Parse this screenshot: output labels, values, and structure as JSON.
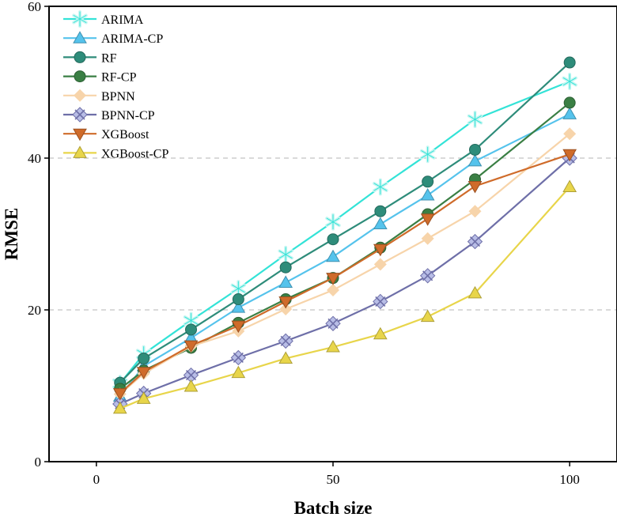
{
  "chart_data": {
    "type": "line",
    "title": "",
    "xlabel": "Batch size",
    "ylabel": "RMSE",
    "xlim": [
      -10,
      110
    ],
    "ylim": [
      0,
      60
    ],
    "xticks": [
      0,
      50,
      100
    ],
    "yticks": [
      0,
      20,
      40,
      60
    ],
    "grid": "horizontal dashed at 20 and 40",
    "legend_position": "top-left",
    "x": [
      5,
      10,
      20,
      30,
      40,
      50,
      60,
      70,
      80,
      100
    ],
    "series": [
      {
        "name": "ARIMA",
        "color": "#33e3d7",
        "marker": "asterisk",
        "values": [
          10.3,
          14.2,
          18.6,
          22.8,
          27.3,
          31.6,
          36.2,
          40.5,
          45.1,
          50.1
        ]
      },
      {
        "name": "ARIMA-CP",
        "color": "#55c3ec",
        "marker": "triangle",
        "values": [
          8.6,
          12.6,
          16.3,
          20.3,
          23.6,
          27.0,
          31.3,
          35.1,
          39.6,
          45.8
        ]
      },
      {
        "name": "RF",
        "color": "#2e8c7a",
        "marker": "circle",
        "values": [
          10.4,
          13.6,
          17.4,
          21.4,
          25.6,
          29.3,
          33.0,
          36.9,
          41.1,
          52.6
        ]
      },
      {
        "name": "RF-CP",
        "color": "#3a7f44",
        "marker": "circle",
        "values": [
          9.6,
          12.0,
          15.0,
          18.3,
          21.4,
          24.2,
          28.2,
          32.6,
          37.2,
          47.3
        ]
      },
      {
        "name": "BPNN",
        "color": "#f7d4aa",
        "marker": "diamond",
        "values": [
          8.9,
          11.6,
          15.2,
          17.2,
          20.1,
          22.6,
          26.0,
          29.4,
          33.0,
          43.2
        ]
      },
      {
        "name": "BPNN-CP",
        "color": "#6e6fa8",
        "marker": "x-diamond",
        "values": [
          7.6,
          9.0,
          11.4,
          13.7,
          15.9,
          18.2,
          21.1,
          24.5,
          29.0,
          40.0
        ]
      },
      {
        "name": "XGBoost",
        "color": "#cf6b2a",
        "marker": "triangle-down",
        "values": [
          9.0,
          11.8,
          15.3,
          17.9,
          21.1,
          24.2,
          28.0,
          32.0,
          36.3,
          40.5
        ]
      },
      {
        "name": "XGBoost-CP",
        "color": "#e8d54a",
        "marker": "triangle",
        "values": [
          7.0,
          8.3,
          9.9,
          11.7,
          13.6,
          15.1,
          16.8,
          19.1,
          22.2,
          36.2
        ]
      }
    ]
  }
}
